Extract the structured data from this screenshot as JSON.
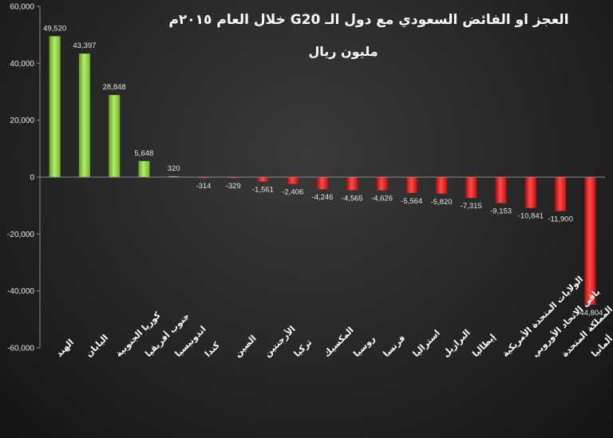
{
  "chart_data": {
    "type": "bar",
    "title": "العجز او الفائض السعودي مع دول الـ G20 خلال العام ٢٠١٥م",
    "subtitle": "مليون ريال",
    "ylim": [
      -60000,
      60000
    ],
    "yticks": [
      -60000,
      -40000,
      -20000,
      0,
      20000,
      40000,
      60000
    ],
    "ytick_labels": [
      "-60,000",
      "-40,000",
      "-20,000",
      "0",
      "20,000",
      "40,000",
      "60,000"
    ],
    "grid": false,
    "categories": [
      "الهند",
      "اليابان",
      "كوريا الجنوبية",
      "جنوب أفريقيا",
      "اندونيسيا",
      "كندا",
      "الصين",
      "الأرجنتين",
      "تركيا",
      "المكسيك",
      "روسيا",
      "فرنسا",
      "استراليا",
      "البرازيل",
      "إيطاليا",
      "الولايات المتحدة الأمريكية",
      "باقي الاتحاد الأوروبي",
      "المملكة المتحدة",
      "ألمانيا"
    ],
    "values": [
      49520,
      43397,
      28848,
      5648,
      320,
      -314,
      -329,
      -1561,
      -2406,
      -4246,
      -4565,
      -4626,
      -5564,
      -5820,
      -7315,
      -9153,
      -10841,
      -11900,
      -44804
    ],
    "value_labels": [
      "49,520",
      "43,397",
      "28,848",
      "5,648",
      "320",
      "-314",
      "-329",
      "-1,561",
      "-2,406",
      "-4,246",
      "-4,565",
      "-4,626",
      "-5,564",
      "-5,820",
      "-7,315",
      "-9,153",
      "-10,841",
      "-11,900",
      "-44,804"
    ],
    "colors": {
      "positive": "#8ed43a",
      "positive_light": "#c8f28a",
      "negative": "#e01818",
      "negative_light": "#ff7a7a"
    }
  }
}
